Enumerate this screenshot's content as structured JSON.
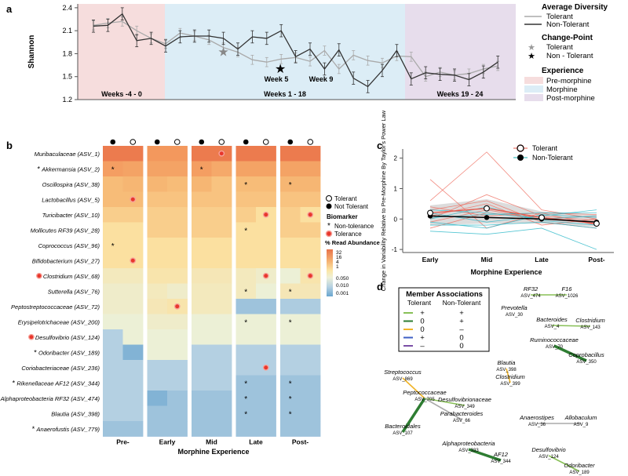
{
  "panel_labels": {
    "a": "a",
    "b": "b",
    "c": "c",
    "d": "d"
  },
  "panel_a": {
    "ylabel": "Shannon",
    "yticks": [
      1.2,
      1.5,
      1.8,
      2.1,
      2.4
    ],
    "band_labels": [
      "Weeks -4 - 0",
      "Weeks 1 - 18",
      "Weeks 19 - 24"
    ],
    "changepoints": [
      "Week 5",
      "Week 9"
    ],
    "legend": {
      "avg_title": "Average Diversity",
      "tolerant": "Tolerant",
      "non_tolerant": "Non-Tolerant",
      "cp_title": "Change-Point",
      "cp_tolerant": "Tolerant",
      "cp_non_tolerant": "Non - Tolerant",
      "exp_title": "Experience",
      "pre": "Pre-morphine",
      "morphine": "Morphine",
      "post": "Post-morphine"
    },
    "colors": {
      "pre": "#f6dddd",
      "morphine": "#dcedf6",
      "post": "#e7ddec",
      "tolerant": "#aaaaaa",
      "non_tolerant": "#333333"
    }
  },
  "chart_data": [
    {
      "type": "line",
      "title": "",
      "ylabel": "Shannon",
      "ylim": [
        1.2,
        2.45
      ],
      "x": [
        -4,
        -3,
        -2,
        -1,
        0,
        1,
        2,
        3,
        4,
        5,
        6,
        7,
        8,
        9,
        10,
        11,
        12,
        13,
        14,
        15,
        16,
        17,
        18,
        19,
        20,
        21,
        22,
        23,
        24
      ],
      "series": [
        {
          "name": "Tolerant",
          "values": [
            2.17,
            2.2,
            2.22,
            2.1,
            2.0,
            1.93,
            2.07,
            2.03,
            1.98,
            1.88,
            1.82,
            1.72,
            1.69,
            1.73,
            1.75,
            1.7,
            1.84,
            1.6,
            1.78,
            1.71,
            1.68,
            1.77,
            1.76,
            1.5,
            1.56,
            1.52,
            1.54,
            1.6,
            1.64
          ]
        },
        {
          "name": "Non-Tolerant",
          "values": [
            2.16,
            2.17,
            2.32,
            1.97,
            2.0,
            1.9,
            2.02,
            2.03,
            2.03,
            2.0,
            1.86,
            2.02,
            2.0,
            2.1,
            1.76,
            1.86,
            1.6,
            1.85,
            1.48,
            1.37,
            1.58,
            1.84,
            1.47,
            1.55,
            1.53,
            1.52,
            1.46,
            1.56,
            1.69
          ]
        }
      ],
      "changepoints": [
        {
          "group": "Tolerant",
          "week": 5
        },
        {
          "group": "Non-Tolerant",
          "week": 9
        }
      ]
    },
    {
      "type": "heatmap",
      "xlabel": "Morphine Experience",
      "columns": [
        "Pre-",
        "Early",
        "Mid",
        "Late",
        "Post-"
      ],
      "subcolumns": [
        "Not Tolerant",
        "Tolerant"
      ],
      "rows": [
        "Muribaculaceae (ASV_1)",
        "Akkermansia (ASV_2)",
        "Oscillospira (ASV_38)",
        "Lactobacillus (ASV_5)",
        "Turicibacter (ASV_10)",
        "Mollicutes RF39 (ASV_28)",
        "Coprococcus (ASV_96)",
        "Bifidobacterium (ASV_27)",
        "Clostridium (ASV_68)",
        "Sutterella (ASV_76)",
        "Peptostreptococcaceae (ASV_72)",
        "Erysipelotrichaceae (ASV_200)",
        "Desulfovibrio (ASV_124)",
        "Odoribacter (ASV_189)",
        "Coriobacteriaceae (ASV_236)",
        "Rikenellaceae AF12 (ASV_344)",
        "Alphaproteobacteria RF32 (ASV_474)",
        "Blautia (ASV_398)",
        "Anaerofustis (ASV_779)"
      ],
      "row_markers": {
        "Akkermansia (ASV_2)": "*",
        "Clostridium (ASV_68)": "tolerance",
        "Desulfovibrio (ASV_124)": "tolerance",
        "Odoribacter (ASV_189)": "*",
        "Rikenellaceae AF12 (ASV_344)": "*",
        "Anaerofustis (ASV_779)": "*"
      },
      "values": [
        [
          [
            25,
            25
          ],
          [
            15,
            15
          ],
          [
            25,
            25
          ],
          [
            25,
            25
          ],
          [
            25,
            25
          ]
        ],
        [
          [
            12,
            10
          ],
          [
            10,
            10
          ],
          [
            12,
            8
          ],
          [
            10,
            10
          ],
          [
            10,
            10
          ]
        ],
        [
          [
            4,
            5
          ],
          [
            5,
            4
          ],
          [
            5,
            3
          ],
          [
            4,
            4
          ],
          [
            5,
            5
          ]
        ],
        [
          [
            4,
            4
          ],
          [
            3,
            3
          ],
          [
            3,
            3
          ],
          [
            3,
            3
          ],
          [
            3,
            3
          ]
        ],
        [
          [
            2,
            2
          ],
          [
            2,
            2
          ],
          [
            2,
            2
          ],
          [
            2,
            1
          ],
          [
            2,
            1
          ]
        ],
        [
          [
            1,
            1
          ],
          [
            2,
            2
          ],
          [
            2,
            2
          ],
          [
            1,
            1
          ],
          [
            2,
            2
          ]
        ],
        [
          [
            1,
            1
          ],
          [
            1,
            1
          ],
          [
            1,
            1
          ],
          [
            1,
            1
          ],
          [
            1,
            1
          ]
        ],
        [
          [
            1,
            1
          ],
          [
            1,
            1
          ],
          [
            1,
            1
          ],
          [
            1,
            1
          ],
          [
            1,
            1
          ]
        ],
        [
          [
            0.2,
            0.2
          ],
          [
            0.5,
            0.5
          ],
          [
            0.3,
            0.3
          ],
          [
            0.2,
            0.1
          ],
          [
            0.05,
            0.5
          ]
        ],
        [
          [
            0.1,
            0.1
          ],
          [
            0.2,
            0.1
          ],
          [
            0.2,
            0.2
          ],
          [
            0.2,
            0.05
          ],
          [
            0.3,
            0.3
          ]
        ],
        [
          [
            0.1,
            0.1
          ],
          [
            0.3,
            0.5
          ],
          [
            0.2,
            0.2
          ],
          [
            0.005,
            0.005
          ],
          [
            0.008,
            0.008
          ]
        ],
        [
          [
            0.05,
            0.05
          ],
          [
            0.1,
            0.1
          ],
          [
            0.05,
            0.05
          ],
          [
            0.05,
            0.05
          ],
          [
            0.05,
            0.05
          ]
        ],
        [
          [
            0.01,
            0.05
          ],
          [
            0.05,
            0.05
          ],
          [
            0.05,
            0.05
          ],
          [
            0.05,
            0.05
          ],
          [
            0.05,
            0.05
          ]
        ],
        [
          [
            0.01,
            0.002
          ],
          [
            0.05,
            0.05
          ],
          [
            0.01,
            0.01
          ],
          [
            0.01,
            0.01
          ],
          [
            0.01,
            0.01
          ]
        ],
        [
          [
            0.01,
            0.01
          ],
          [
            0.01,
            0.01
          ],
          [
            0.01,
            0.01
          ],
          [
            0.01,
            0.01
          ],
          [
            0.01,
            0.01
          ]
        ],
        [
          [
            0.01,
            0.01
          ],
          [
            0.01,
            0.01
          ],
          [
            0.01,
            0.01
          ],
          [
            0.005,
            0.005
          ],
          [
            0.005,
            0.005
          ]
        ],
        [
          [
            0.01,
            0.01
          ],
          [
            0.002,
            0.005
          ],
          [
            0.005,
            0.005
          ],
          [
            0.005,
            0.005
          ],
          [
            0.005,
            0.005
          ]
        ],
        [
          [
            0.01,
            0.01
          ],
          [
            0.005,
            0.005
          ],
          [
            0.005,
            0.005
          ],
          [
            0.005,
            0.005
          ],
          [
            0.005,
            0.005
          ]
        ],
        [
          [
            0.005,
            0.005
          ],
          [
            0.005,
            0.005
          ],
          [
            0.005,
            0.005
          ],
          [
            0.005,
            0.005
          ],
          [
            0.005,
            0.005
          ]
        ]
      ],
      "star_cells": [
        [
          "Akkermansia (ASV_2)",
          "Pre-",
          "Not Tolerant"
        ],
        [
          "Akkermansia (ASV_2)",
          "Mid",
          "Not Tolerant"
        ],
        [
          "Oscillospira (ASV_38)",
          "Late",
          "Not Tolerant"
        ],
        [
          "Oscillospira (ASV_38)",
          "Post-",
          "Not Tolerant"
        ],
        [
          "Mollicutes RF39 (ASV_28)",
          "Late",
          "Not Tolerant"
        ],
        [
          "Coprococcus (ASV_96)",
          "Pre-",
          "Not Tolerant"
        ],
        [
          "Sutterella (ASV_76)",
          "Late",
          "Not Tolerant"
        ],
        [
          "Sutterella (ASV_76)",
          "Post-",
          "Not Tolerant"
        ],
        [
          "Erysipelotrichaceae (ASV_200)",
          "Late",
          "Not Tolerant"
        ],
        [
          "Erysipelotrichaceae (ASV_200)",
          "Post-",
          "Not Tolerant"
        ],
        [
          "Rikenellaceae AF12 (ASV_344)",
          "Late",
          "Not Tolerant"
        ],
        [
          "Rikenellaceae AF12 (ASV_344)",
          "Post-",
          "Not Tolerant"
        ],
        [
          "Alphaproteobacteria RF32 (ASV_474)",
          "Late",
          "Not Tolerant"
        ],
        [
          "Alphaproteobacteria RF32 (ASV_474)",
          "Post-",
          "Not Tolerant"
        ],
        [
          "Blautia (ASV_398)",
          "Late",
          "Not Tolerant"
        ],
        [
          "Blautia (ASV_398)",
          "Post-",
          "Not Tolerant"
        ]
      ],
      "dot_cells": [
        [
          "Muribaculaceae (ASV_1)",
          "Mid",
          "Tolerant"
        ],
        [
          "Lactobacillus (ASV_5)",
          "Pre-",
          "Tolerant"
        ],
        [
          "Turicibacter (ASV_10)",
          "Late",
          "Tolerant"
        ],
        [
          "Turicibacter (ASV_10)",
          "Post-",
          "Tolerant"
        ],
        [
          "Bifidobacterium (ASV_27)",
          "Pre-",
          "Tolerant"
        ],
        [
          "Clostridium (ASV_68)",
          "Late",
          "Tolerant"
        ],
        [
          "Clostridium (ASV_68)",
          "Post-",
          "Tolerant"
        ],
        [
          "Peptostreptococcaceae (ASV_72)",
          "Early",
          "Tolerant"
        ],
        [
          "Coriobacteriaceae (ASV_236)",
          "Late",
          "Tolerant"
        ]
      ]
    },
    {
      "type": "line",
      "ylabel": "Change in Variability Relative to Pre-Morphine By Taylor's Power Law",
      "xlabel": "Morphine Experience",
      "categories": [
        "Early",
        "Mid",
        "Late",
        "Post-"
      ],
      "ylim": [
        -1,
        2
      ],
      "yticks": [
        -1,
        0,
        1,
        2
      ],
      "series": [
        {
          "name": "Tolerant",
          "values": [
            0.2,
            0.35,
            0.05,
            -0.15
          ]
        },
        {
          "name": "Non-Tolerant",
          "values": [
            0.1,
            0.05,
            0.0,
            -0.1
          ]
        }
      ]
    }
  ],
  "heatmap_legend": {
    "tolerant": "Tolerant",
    "not_tolerant": "Not Tolerant",
    "biomarker_title": "Biomarker",
    "non_tolerance": "Non-tolerance",
    "tolerance": "Tolerance",
    "scale_title": "% Read\nAbundance",
    "scale_ticks": [
      "32",
      "16",
      "4",
      "1",
      "0.050",
      "0.010",
      "0.001"
    ]
  },
  "panel_c_legend": {
    "tolerant": "Tolerant",
    "non_tolerant": "Non-Tolerant"
  },
  "panel_d": {
    "legend_title": "Member Associations",
    "col_tolerant": "Tolerant",
    "col_non_tolerant": "Non-Tolerant",
    "rows": [
      {
        "color": "#88c057",
        "tolerant": "+",
        "non_tolerant": "+"
      },
      {
        "color": "#2e7d32",
        "tolerant": "0",
        "non_tolerant": "+"
      },
      {
        "color": "#f0b428",
        "tolerant": "0",
        "non_tolerant": "–"
      },
      {
        "color": "#3e5fc4",
        "tolerant": "+",
        "non_tolerant": "0"
      },
      {
        "color": "#7b4fa6",
        "tolerant": "–",
        "non_tolerant": "0"
      }
    ],
    "nodes": [
      {
        "genus": "RF32",
        "asv": "ASV_474"
      },
      {
        "genus": "F16",
        "asv": "ASV_1026"
      },
      {
        "genus": "Prevotella",
        "asv": "ASV_30"
      },
      {
        "genus": "Bacteroides",
        "asv": "ASV_4"
      },
      {
        "genus": "Clostridium",
        "asv": "ASV_143"
      },
      {
        "genus": "Ruminococcaceae",
        "asv": "ASV_70"
      },
      {
        "genus": "Coprobacillus",
        "asv": "ASV_350"
      },
      {
        "genus": "Blautia",
        "asv": "ASV_398"
      },
      {
        "genus": "Clostridium",
        "asv": "ASV_399"
      },
      {
        "genus": "Streptococcus",
        "asv": "ASV_869"
      },
      {
        "genus": "Peptococcaceae",
        "asv": "ASV_705"
      },
      {
        "genus": "Desulfovibrionaceae",
        "asv": "ASV_349"
      },
      {
        "genus": "Parabacteroides",
        "asv": "ASV_66"
      },
      {
        "genus": "Anaerostipes",
        "asv": "ASV_36"
      },
      {
        "genus": "Allobaculum",
        "asv": "ASV_9"
      },
      {
        "genus": "Bacteroidales",
        "asv": "ASV_107"
      },
      {
        "genus": "Alphaproteobacteria",
        "asv": "ASV_333"
      },
      {
        "genus": "AF12",
        "asv": "ASV_344"
      },
      {
        "genus": "Desulfovibrio",
        "asv": "ASV_124"
      },
      {
        "genus": "Odoribacter",
        "asv": "ASV_189"
      }
    ],
    "edges": [
      [
        0,
        1,
        "#88c057"
      ],
      [
        3,
        4,
        "#88c057"
      ],
      [
        5,
        6,
        "#2e7d32"
      ],
      [
        7,
        8,
        "#f0b428"
      ],
      [
        9,
        10,
        "#f0b428"
      ],
      [
        10,
        11,
        "#88c057"
      ],
      [
        10,
        12,
        "#aaaaaa"
      ],
      [
        10,
        15,
        "#2e7d32"
      ],
      [
        13,
        14,
        "#aaaaaa"
      ],
      [
        16,
        17,
        "#2e7d32"
      ],
      [
        18,
        19,
        "#88c057"
      ]
    ]
  }
}
